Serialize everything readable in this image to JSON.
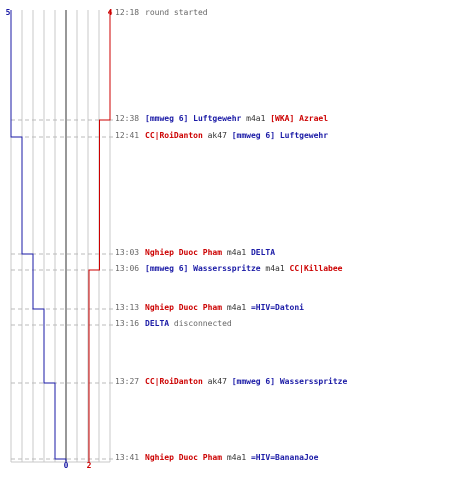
{
  "score_labels": {
    "blue_start": "5",
    "red_start": "4",
    "blue_end": "0",
    "red_end": "2"
  },
  "colors": {
    "team_red": "#cc0000",
    "team_blue": "#1a1aa6",
    "grid": "#c8c8c8",
    "zero_line": "#777777",
    "dash": "#bbbbbb",
    "time": "#666666"
  },
  "chart_data": {
    "type": "line",
    "x_axis": "lives remaining",
    "y_axis": "time",
    "series": [
      {
        "color": "#1a1aa6",
        "points": [
          {
            "time": "12:18",
            "value": 5
          },
          {
            "time": "12:41",
            "value": 4
          },
          {
            "time": "13:03",
            "value": 3
          },
          {
            "time": "13:13",
            "value": 2
          },
          {
            "time": "13:27",
            "value": 1
          },
          {
            "time": "13:41",
            "value": 0
          }
        ]
      },
      {
        "color": "#cc0000",
        "points": [
          {
            "time": "12:18",
            "value": 4
          },
          {
            "time": "12:38",
            "value": 3
          },
          {
            "time": "13:06",
            "value": 2
          }
        ]
      }
    ]
  },
  "events": [
    {
      "time": "12:18",
      "parts": [
        {
          "text": "round started",
          "cls": "note"
        }
      ]
    },
    {
      "time": "12:38",
      "parts": [
        {
          "text": "[mmweg 6] Luftgewehr",
          "cls": "blue"
        },
        {
          "text": " m4a1 ",
          "cls": "wep"
        },
        {
          "text": "[WKA] Azrael",
          "cls": "red"
        }
      ]
    },
    {
      "time": "12:41",
      "parts": [
        {
          "text": "CC|RoiDanton",
          "cls": "red"
        },
        {
          "text": " ak47 ",
          "cls": "wep"
        },
        {
          "text": "[mmweg 6] Luftgewehr",
          "cls": "blue"
        }
      ]
    },
    {
      "time": "13:03",
      "parts": [
        {
          "text": "Nghiep Duoc Pham",
          "cls": "red"
        },
        {
          "text": " m4a1 ",
          "cls": "wep"
        },
        {
          "text": "DELTA",
          "cls": "blue"
        }
      ]
    },
    {
      "time": "13:06",
      "parts": [
        {
          "text": "[mmweg 6] Wassersspritze",
          "cls": "blue"
        },
        {
          "text": " m4a1 ",
          "cls": "wep"
        },
        {
          "text": "CC|Killabee",
          "cls": "red"
        }
      ]
    },
    {
      "time": "13:13",
      "parts": [
        {
          "text": "Nghiep Duoc Pham",
          "cls": "red"
        },
        {
          "text": " m4a1 ",
          "cls": "wep"
        },
        {
          "text": "=HIV=Datoni",
          "cls": "blue"
        }
      ]
    },
    {
      "time": "13:16",
      "parts": [
        {
          "text": "DELTA",
          "cls": "blue"
        },
        {
          "text": " disconnected",
          "cls": "note"
        }
      ]
    },
    {
      "time": "13:27",
      "parts": [
        {
          "text": "CC|RoiDanton",
          "cls": "red"
        },
        {
          "text": " ak47 ",
          "cls": "wep"
        },
        {
          "text": "[mmweg 6] Wassersspritze",
          "cls": "blue"
        }
      ]
    },
    {
      "time": "13:41",
      "parts": [
        {
          "text": "Nghiep Duoc Pham",
          "cls": "red"
        },
        {
          "text": " m4a1 ",
          "cls": "wep"
        },
        {
          "text": "=HIV=BananaJoe",
          "cls": "blue"
        }
      ]
    }
  ]
}
